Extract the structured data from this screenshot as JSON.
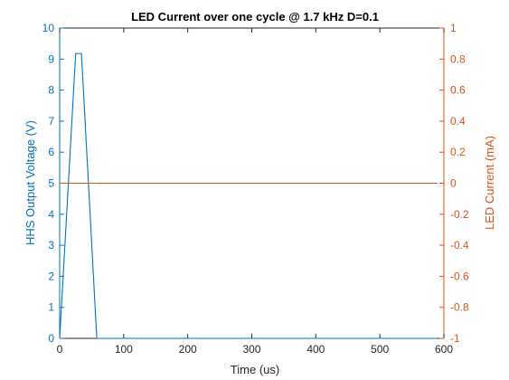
{
  "chart_data": {
    "type": "line",
    "title": "LED Current over one cycle @ 1.7 kHz D=0.1",
    "xlabel": "Time (us)",
    "ylabel_left": "HHS Output Voltage (V)",
    "ylabel_right": "LED Current (mA)",
    "xlim": [
      0,
      600
    ],
    "ylim_left": [
      0,
      10
    ],
    "ylim_right": [
      -1,
      1
    ],
    "x_ticks": [
      0,
      100,
      200,
      300,
      400,
      500,
      600
    ],
    "y_left_ticks": [
      0,
      1,
      2,
      3,
      4,
      5,
      6,
      7,
      8,
      9,
      10
    ],
    "y_right_ticks": [
      -1,
      -0.8,
      -0.6,
      -0.4,
      -0.2,
      0,
      0.2,
      0.4,
      0.6,
      0.8,
      1
    ],
    "x_tick_labels": [
      "0",
      "100",
      "200",
      "300",
      "400",
      "500",
      "600"
    ],
    "y_left_tick_labels": [
      "0",
      "1",
      "2",
      "3",
      "4",
      "5",
      "6",
      "7",
      "8",
      "9",
      "10"
    ],
    "y_right_tick_labels": [
      "-1",
      "-0.8",
      "-0.6",
      "-0.4",
      "-0.2",
      "0",
      "0.2",
      "0.4",
      "0.6",
      "0.8",
      "1"
    ],
    "grid": false,
    "colors": {
      "left_axis": "#0072BD",
      "right_axis": "#D95319",
      "frame": "#262626"
    },
    "series": [
      {
        "axis": "left",
        "x": [
          0,
          25,
          34,
          58,
          59,
          590
        ],
        "y": [
          0,
          9.18,
          9.18,
          0,
          0,
          0
        ]
      },
      {
        "axis": "right",
        "x": [
          0,
          590
        ],
        "y": [
          0,
          0
        ]
      }
    ]
  }
}
